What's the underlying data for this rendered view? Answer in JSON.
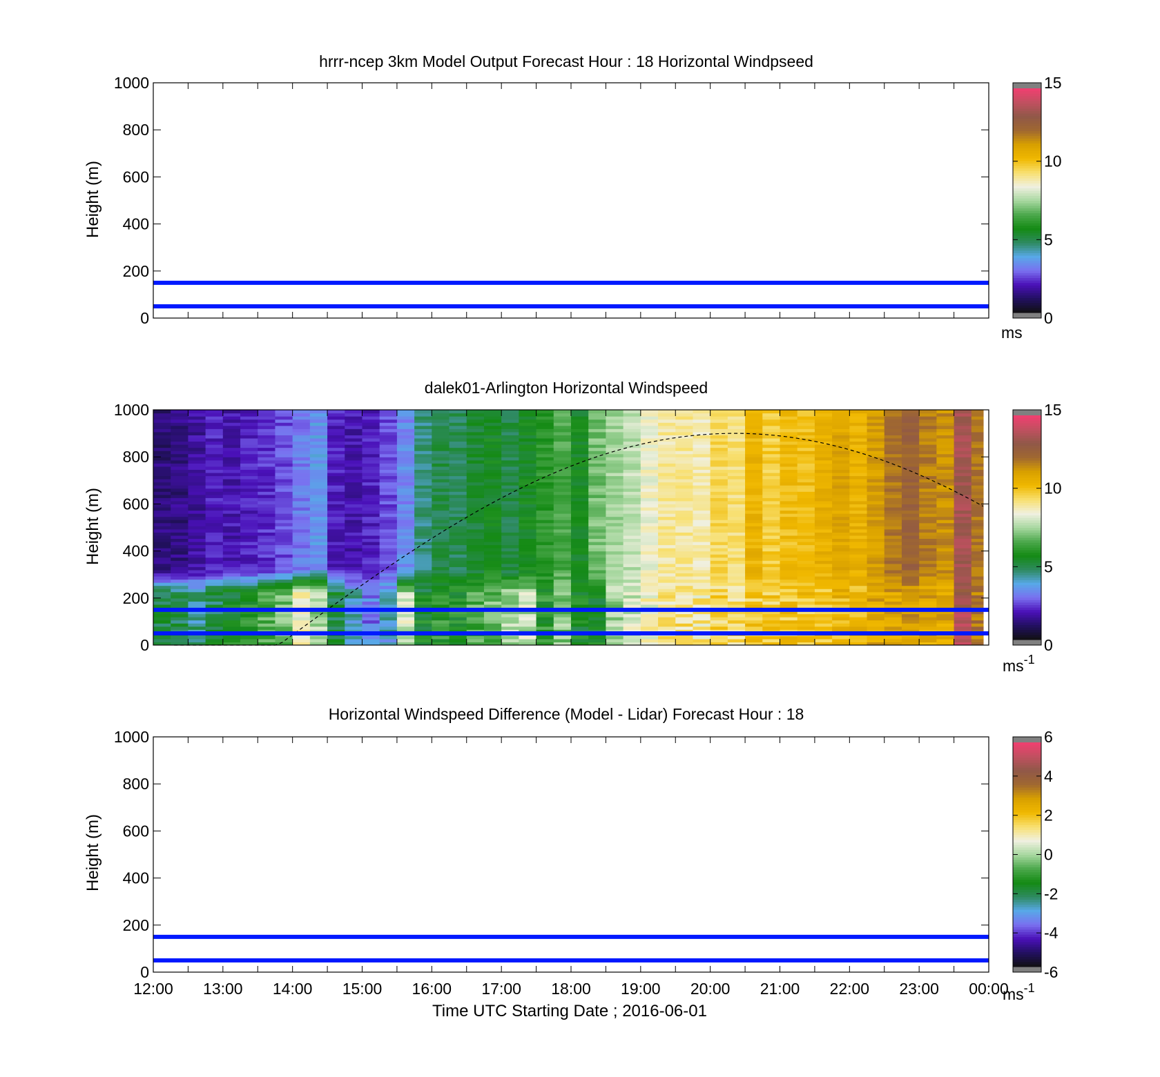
{
  "colors": {
    "ref_line": "#0019ff",
    "boundary_line": "#000000",
    "axis": "#000000",
    "background": "#ffffff"
  },
  "x_axis": {
    "tick_labels": [
      "12:00",
      "13:00",
      "14:00",
      "15:00",
      "16:00",
      "17:00",
      "18:00",
      "19:00",
      "20:00",
      "21:00",
      "22:00",
      "23:00",
      "00:00"
    ],
    "label": "Time UTC  Starting Date ; 2016-06-01",
    "minor_per_hour": 2
  },
  "colormap": [
    "#101010",
    "#221060",
    "#4a10b8",
    "#7a70f0",
    "#58a8e8",
    "#2e8a60",
    "#148a14",
    "#4ca84c",
    "#a8d8a0",
    "#f0f0e0",
    "#f8e070",
    "#f0b800",
    "#d8a000",
    "#a06830",
    "#905848",
    "#c05060",
    "#f04070",
    "#c00030",
    "#808080"
  ],
  "chart_data": [
    {
      "id": "model",
      "type": "heatmap",
      "title": "hrrr-ncep 3km Model Output   Forecast Hour : 18 Horizontal Windpseed",
      "ylabel": "Height (m)",
      "yticks": [
        0,
        200,
        400,
        600,
        800,
        1000
      ],
      "ylim": [
        0,
        1000
      ],
      "xlim_hours": [
        12,
        24
      ],
      "ref_lines": [
        150,
        50
      ],
      "colorbar": {
        "ticks": [
          0,
          5,
          10,
          15
        ],
        "range": [
          0,
          15
        ],
        "unit": "ms",
        "unit_sup": ""
      },
      "values": []
    },
    {
      "id": "lidar",
      "type": "heatmap",
      "title": "dalek01-Arlington  Horizontal Windspeed",
      "ylabel": "Height (m)",
      "yticks": [
        0,
        200,
        400,
        600,
        800,
        1000
      ],
      "ylim": [
        0,
        1000
      ],
      "xlim_hours": [
        12,
        24
      ],
      "ref_lines": [
        150,
        50
      ],
      "colorbar": {
        "ticks": [
          0,
          5,
          10,
          15
        ],
        "range": [
          0,
          15
        ],
        "unit": "ms",
        "unit_sup": "-1"
      },
      "time_start_hours": [
        12.0,
        12.25,
        12.5,
        12.75,
        13.0,
        13.25,
        13.5,
        13.75,
        14.0,
        14.25,
        14.5,
        14.75,
        15.0,
        15.25,
        15.5,
        15.75,
        16.0,
        16.25,
        16.5,
        16.75,
        17.0,
        17.25,
        17.5,
        17.75,
        18.0,
        18.25,
        18.5,
        18.75,
        19.0,
        19.25,
        19.5,
        19.75,
        20.0,
        20.25,
        20.5,
        20.75,
        21.0,
        21.25,
        21.5,
        21.75,
        22.0,
        22.25,
        22.5,
        22.75,
        23.0,
        23.25,
        23.5,
        23.75
      ],
      "time_end_hours": 23.92,
      "column_speed_upper": [
        1.2,
        1.3,
        1.6,
        2.0,
        1.8,
        2.0,
        2.2,
        2.5,
        3.0,
        3.5,
        2.0,
        1.8,
        2.0,
        2.5,
        3.2,
        4.5,
        5.0,
        4.8,
        5.2,
        5.5,
        5.0,
        5.5,
        6.0,
        6.5,
        5.5,
        7.0,
        7.5,
        7.8,
        8.5,
        9.0,
        9.0,
        8.8,
        9.5,
        9.3,
        10.5,
        9.8,
        10.2,
        10.2,
        10.6,
        11.0,
        10.6,
        11.2,
        12.0,
        12.5,
        11.8,
        11.5,
        13.5,
        12.0
      ],
      "column_speed_lower": [
        5.0,
        4.8,
        4.5,
        5.0,
        5.5,
        6.0,
        6.5,
        7.0,
        8.5,
        7.5,
        5.2,
        4.0,
        3.0,
        4.0,
        8.0,
        5.5,
        6.0,
        5.8,
        6.5,
        6.8,
        7.5,
        7.8,
        6.0,
        7.2,
        5.5,
        5.5,
        7.5,
        8.0,
        8.5,
        9.0,
        9.2,
        9.0,
        9.5,
        9.3,
        9.8,
        9.8,
        10.0,
        10.0,
        10.2,
        10.4,
        10.4,
        10.8,
        11.0,
        11.2,
        11.0,
        10.8,
        13.5,
        12.0
      ],
      "boundary_layer_height": {
        "start_hour": 12.3,
        "peak_hour": 20.35,
        "end_hour": 23.92,
        "peak_m": 900,
        "end_m": 590
      }
    },
    {
      "id": "difference",
      "type": "heatmap",
      "title": "Horizontal Windspeed Difference (Model - Lidar) Forecast Hour : 18",
      "ylabel": "Height (m)",
      "yticks": [
        0,
        200,
        400,
        600,
        800,
        1000
      ],
      "ylim": [
        0,
        1000
      ],
      "xlim_hours": [
        12,
        24
      ],
      "ref_lines": [
        150,
        50
      ],
      "colorbar": {
        "ticks": [
          -6,
          -4,
          -2,
          0,
          2,
          4,
          6
        ],
        "range": [
          -6,
          6
        ],
        "unit": "ms",
        "unit_sup": "-1"
      },
      "values": []
    }
  ]
}
